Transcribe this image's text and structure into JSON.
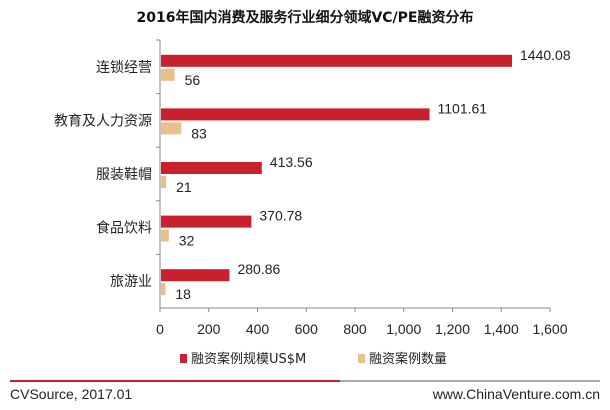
{
  "chart_data": {
    "type": "bar",
    "orientation": "horizontal",
    "title": "2016年国内消费及服务行业细分领域VC/PE融资分布",
    "categories": [
      "连锁经营",
      "教育及人力资源",
      "服装鞋帽",
      "食品饮料",
      "旅游业"
    ],
    "series": [
      {
        "name": "融资案例规模US$M",
        "values": [
          1440.08,
          1101.61,
          413.56,
          370.78,
          280.86
        ],
        "color": "#c8202c",
        "labels": [
          "1440.08",
          "1101.61",
          "413.56",
          "370.78",
          "280.86"
        ]
      },
      {
        "name": "融资案例数量",
        "values": [
          56,
          83,
          21,
          32,
          18
        ],
        "color": "#e8c08a",
        "labels": [
          "56",
          "83",
          "21",
          "32",
          "18"
        ]
      }
    ],
    "xlim": [
      0,
      1600
    ],
    "xticks": [
      0,
      200,
      400,
      600,
      800,
      1000,
      1200,
      1400,
      1600
    ],
    "xtick_labels": [
      "0",
      "200",
      "400",
      "600",
      "800",
      "1,000",
      "1,200",
      "1,400",
      "1,600"
    ],
    "grid": false,
    "legend_position": "bottom"
  },
  "footer": {
    "source": "CVSource, 2017.01",
    "website": "www.ChinaVenture.com.cn",
    "accent_color": "#c8202c"
  }
}
